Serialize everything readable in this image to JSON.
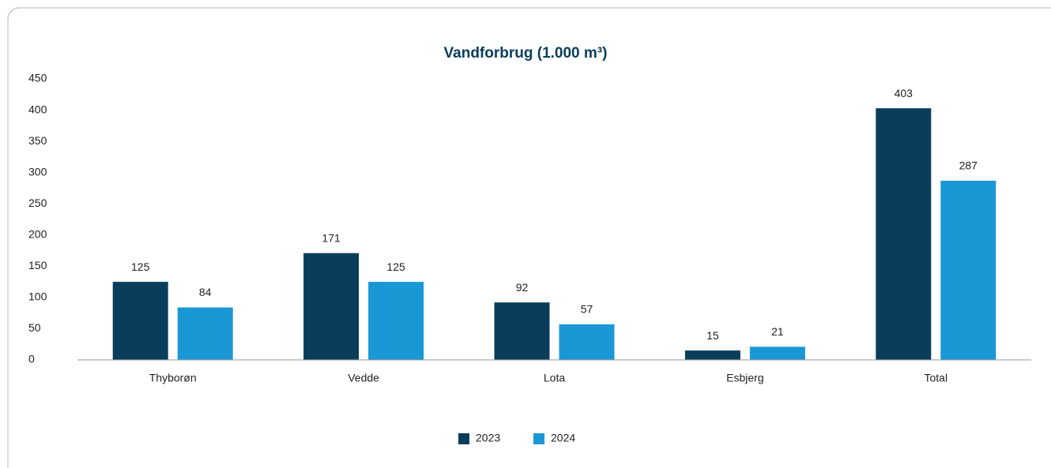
{
  "chart_data": {
    "type": "bar",
    "title": "Vandforbrug (1.000 m³)",
    "categories": [
      "Thyborøn",
      "Vedde",
      "Lota",
      "Esbjerg",
      "Total"
    ],
    "series": [
      {
        "name": "2023",
        "color": "#0a3d5a",
        "values": [
          125,
          171,
          92,
          15,
          403
        ]
      },
      {
        "name": "2024",
        "color": "#1a98d5",
        "values": [
          84,
          125,
          57,
          21,
          287
        ]
      }
    ],
    "ylim": [
      0,
      450
    ],
    "yticks": [
      0,
      50,
      100,
      150,
      200,
      250,
      300,
      350,
      400,
      450
    ],
    "grid": false,
    "legend": "bottom"
  }
}
